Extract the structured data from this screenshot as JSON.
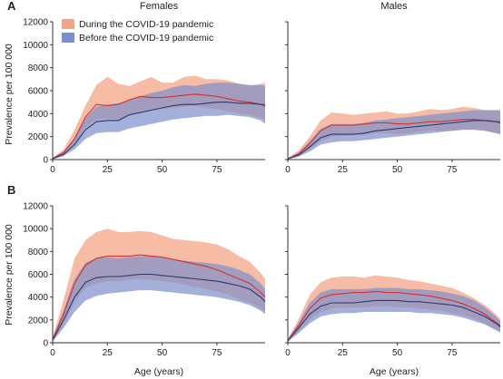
{
  "colors": {
    "during_fill": "#f4a587",
    "during_line": "#d8302c",
    "before_fill": "#7e8ec9",
    "before_line": "#2b3a6b",
    "axis": "#333333"
  },
  "layout_text": {
    "panel_A": "A",
    "panel_B": "B",
    "col_left": "Females",
    "col_right": "Males",
    "ylabel": "Prevalence per 100 000",
    "xlabel": "Age (years)"
  },
  "legend": {
    "during": "During the COVID-19 pandemic",
    "before": "Before the COVID-19 pandemic"
  },
  "chart_data": [
    {
      "id": "A-females",
      "type": "area",
      "panel": "A",
      "title": "Females",
      "xlabel": "",
      "ylabel": "Prevalence per 100 000",
      "xlim": [
        0,
        97
      ],
      "ylim": [
        0,
        12000
      ],
      "xticks": [
        0,
        25,
        50,
        75
      ],
      "yticks": [
        0,
        2000,
        4000,
        6000,
        8000,
        10000,
        12000
      ],
      "x": [
        0,
        5,
        10,
        15,
        20,
        25,
        30,
        35,
        40,
        45,
        50,
        55,
        60,
        65,
        70,
        75,
        80,
        85,
        90,
        95,
        97
      ],
      "series": [
        {
          "name": "During the COVID-19 pandemic",
          "values": [
            100,
            600,
            1800,
            3700,
            4800,
            4700,
            4800,
            5200,
            5500,
            5400,
            5400,
            5500,
            5600,
            5700,
            5600,
            5500,
            5300,
            5100,
            5000,
            4800,
            4800
          ],
          "lower": [
            50,
            400,
            1300,
            2800,
            3500,
            3600,
            3500,
            3800,
            4200,
            4300,
            4400,
            4500,
            4600,
            4700,
            4500,
            4400,
            4200,
            4000,
            3900,
            3600,
            3500
          ],
          "upper": [
            150,
            900,
            2600,
            4700,
            6500,
            7200,
            6600,
            6400,
            6800,
            7200,
            6700,
            6700,
            7200,
            7300,
            7000,
            7000,
            6900,
            6600,
            6400,
            6600,
            6700
          ]
        },
        {
          "name": "Before the COVID-19 pandemic",
          "values": [
            80,
            450,
            1300,
            2600,
            3300,
            3400,
            3400,
            3900,
            4100,
            4300,
            4500,
            4700,
            4800,
            4800,
            4900,
            5000,
            5000,
            4900,
            4900,
            4800,
            4700
          ],
          "lower": [
            30,
            300,
            900,
            1800,
            2300,
            2400,
            2400,
            2700,
            2900,
            3100,
            3300,
            3500,
            3600,
            3700,
            3800,
            3800,
            3900,
            3800,
            3700,
            3400,
            3100
          ],
          "upper": [
            130,
            700,
            1900,
            3600,
            4600,
            4800,
            4900,
            5200,
            5500,
            5800,
            6000,
            6300,
            6500,
            6400,
            6600,
            6700,
            6700,
            6600,
            6500,
            6500,
            6400
          ]
        }
      ]
    },
    {
      "id": "A-males",
      "type": "area",
      "panel": "A",
      "title": "Males",
      "xlabel": "",
      "ylabel": "",
      "xlim": [
        0,
        97
      ],
      "ylim": [
        0,
        12000
      ],
      "xticks": [
        0,
        25,
        50,
        75
      ],
      "yticks": [
        0,
        2000,
        4000,
        6000,
        8000,
        10000,
        12000
      ],
      "x": [
        0,
        5,
        10,
        15,
        20,
        25,
        30,
        35,
        40,
        45,
        50,
        55,
        60,
        65,
        70,
        75,
        80,
        85,
        90,
        95,
        97
      ],
      "series": [
        {
          "name": "During the COVID-19 pandemic",
          "values": [
            80,
            500,
            1400,
            2500,
            3000,
            3000,
            3000,
            3100,
            3200,
            3200,
            3100,
            3100,
            3200,
            3300,
            3300,
            3400,
            3500,
            3500,
            3400,
            3300,
            3300
          ],
          "lower": [
            40,
            300,
            900,
            1600,
            2000,
            2100,
            2100,
            2200,
            2300,
            2300,
            2200,
            2300,
            2400,
            2500,
            2500,
            2500,
            2600,
            2600,
            2500,
            2300,
            2200
          ],
          "upper": [
            120,
            800,
            2000,
            3400,
            4100,
            4000,
            3900,
            4000,
            4100,
            4200,
            4000,
            4000,
            4200,
            4400,
            4300,
            4400,
            4600,
            4500,
            4300,
            4300,
            4400
          ]
        },
        {
          "name": "Before the COVID-19 pandemic",
          "values": [
            70,
            400,
            1100,
            1900,
            2200,
            2200,
            2200,
            2300,
            2500,
            2600,
            2700,
            2800,
            2900,
            3000,
            3100,
            3200,
            3300,
            3400,
            3400,
            3300,
            3200
          ],
          "lower": [
            30,
            250,
            700,
            1300,
            1500,
            1600,
            1600,
            1700,
            1800,
            1900,
            2000,
            2100,
            2200,
            2300,
            2400,
            2500,
            2600,
            2600,
            2500,
            2300,
            2200
          ],
          "upper": [
            110,
            650,
            1600,
            2700,
            3100,
            3100,
            3100,
            3200,
            3400,
            3500,
            3600,
            3700,
            3800,
            3900,
            4000,
            4100,
            4200,
            4300,
            4300,
            4300,
            4200
          ]
        }
      ]
    },
    {
      "id": "B-females",
      "type": "area",
      "panel": "B",
      "title": "",
      "xlabel": "Age (years)",
      "ylabel": "Prevalence per 100 000",
      "xlim": [
        0,
        97
      ],
      "ylim": [
        0,
        12000
      ],
      "xticks": [
        0,
        25,
        50,
        75
      ],
      "yticks": [
        0,
        2000,
        4000,
        6000,
        8000,
        10000,
        12000
      ],
      "x": [
        0,
        5,
        10,
        15,
        20,
        25,
        30,
        35,
        40,
        45,
        50,
        55,
        60,
        65,
        70,
        75,
        80,
        85,
        90,
        95,
        97
      ],
      "series": [
        {
          "name": "During the COVID-19 pandemic",
          "values": [
            300,
            2500,
            5200,
            6800,
            7400,
            7600,
            7600,
            7600,
            7700,
            7600,
            7500,
            7300,
            7100,
            6900,
            6700,
            6400,
            6000,
            5600,
            5200,
            4400,
            4000
          ],
          "lower": [
            150,
            1600,
            3600,
            4800,
            5200,
            5400,
            5400,
            5500,
            5600,
            5500,
            5400,
            5300,
            5100,
            4900,
            4700,
            4500,
            4200,
            3800,
            3500,
            3000,
            2700
          ],
          "upper": [
            500,
            3800,
            7400,
            9000,
            9700,
            10000,
            9700,
            9700,
            9800,
            9700,
            9400,
            9100,
            9000,
            8900,
            8800,
            8600,
            8200,
            7600,
            7100,
            6100,
            5600
          ]
        },
        {
          "name": "Before the COVID-19 pandemic",
          "values": [
            250,
            2000,
            4000,
            5300,
            5700,
            5800,
            5800,
            5900,
            6000,
            6000,
            5900,
            5800,
            5700,
            5600,
            5500,
            5400,
            5200,
            5000,
            4700,
            4000,
            3600
          ],
          "lower": [
            100,
            1300,
            2700,
            3700,
            4100,
            4300,
            4400,
            4500,
            4600,
            4600,
            4500,
            4400,
            4300,
            4200,
            4100,
            4000,
            3800,
            3600,
            3300,
            2800,
            2500
          ],
          "upper": [
            400,
            2900,
            5600,
            7000,
            7400,
            7500,
            7400,
            7500,
            7600,
            7600,
            7500,
            7300,
            7200,
            7100,
            7000,
            6900,
            6700,
            6400,
            6000,
            5200,
            4700
          ]
        }
      ]
    },
    {
      "id": "B-males",
      "type": "area",
      "panel": "B",
      "title": "",
      "xlabel": "Age (years)",
      "ylabel": "",
      "xlim": [
        0,
        97
      ],
      "ylim": [
        0,
        12000
      ],
      "xticks": [
        0,
        25,
        50,
        75
      ],
      "yticks": [
        0,
        2000,
        4000,
        6000,
        8000,
        10000,
        12000
      ],
      "x": [
        0,
        5,
        10,
        15,
        20,
        25,
        30,
        35,
        40,
        45,
        50,
        55,
        60,
        65,
        70,
        75,
        80,
        85,
        90,
        95,
        97
      ],
      "series": [
        {
          "name": "During the COVID-19 pandemic",
          "values": [
            200,
            1500,
            3000,
            3900,
            4200,
            4300,
            4400,
            4400,
            4500,
            4400,
            4400,
            4300,
            4200,
            4100,
            3900,
            3700,
            3400,
            3000,
            2500,
            1800,
            1500
          ],
          "lower": [
            100,
            1000,
            2000,
            2700,
            3000,
            3100,
            3100,
            3100,
            3200,
            3200,
            3100,
            3100,
            3000,
            2900,
            2800,
            2600,
            2400,
            2100,
            1700,
            1200,
            1000
          ],
          "upper": [
            350,
            2100,
            4200,
            5300,
            5700,
            5800,
            5800,
            5700,
            5900,
            5800,
            5700,
            5500,
            5400,
            5200,
            5000,
            4800,
            4400,
            3900,
            3300,
            2500,
            2100
          ]
        },
        {
          "name": "Before the COVID-19 pandemic",
          "values": [
            180,
            1300,
            2500,
            3200,
            3500,
            3500,
            3500,
            3600,
            3700,
            3700,
            3700,
            3600,
            3600,
            3500,
            3400,
            3300,
            3100,
            2700,
            2300,
            1700,
            1400
          ],
          "lower": [
            90,
            850,
            1700,
            2300,
            2500,
            2600,
            2600,
            2700,
            2700,
            2700,
            2700,
            2700,
            2600,
            2600,
            2500,
            2400,
            2200,
            1900,
            1600,
            1100,
            900
          ],
          "upper": [
            300,
            1800,
            3500,
            4400,
            4700,
            4700,
            4700,
            4700,
            4800,
            4800,
            4800,
            4700,
            4700,
            4600,
            4500,
            4300,
            4100,
            3700,
            3100,
            2300,
            1900
          ]
        }
      ]
    }
  ]
}
